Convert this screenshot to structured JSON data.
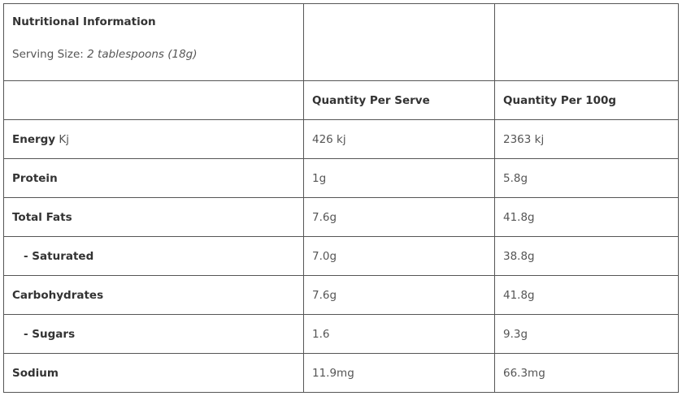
{
  "title": "Nutritional Information",
  "serving": {
    "label": "Serving Size:",
    "value": "2 tablespoons (18g)"
  },
  "headers": [
    "Quantity Per Serve",
    "Quantity Per 100g"
  ],
  "rows": [
    {
      "name": "Energy",
      "unit": "Kj",
      "serve": "426 kj",
      "per100": "2363 kj"
    },
    {
      "name": "Protein",
      "serve": "1g",
      "per100": "5.8g"
    },
    {
      "name": "Total Fats",
      "serve": "7.6g",
      "per100": "41.8g"
    },
    {
      "name": "- Saturated",
      "serve": "7.0g",
      "per100": "38.8g",
      "sub": true
    },
    {
      "name": "Carbohydrates",
      "serve": "7.6g",
      "per100": "41.8g"
    },
    {
      "name": "- Sugars",
      "serve": "1.6",
      "per100": "9.3g",
      "sub": true
    },
    {
      "name": "Sodium",
      "serve": "11.9mg",
      "per100": "66.3mg"
    }
  ]
}
